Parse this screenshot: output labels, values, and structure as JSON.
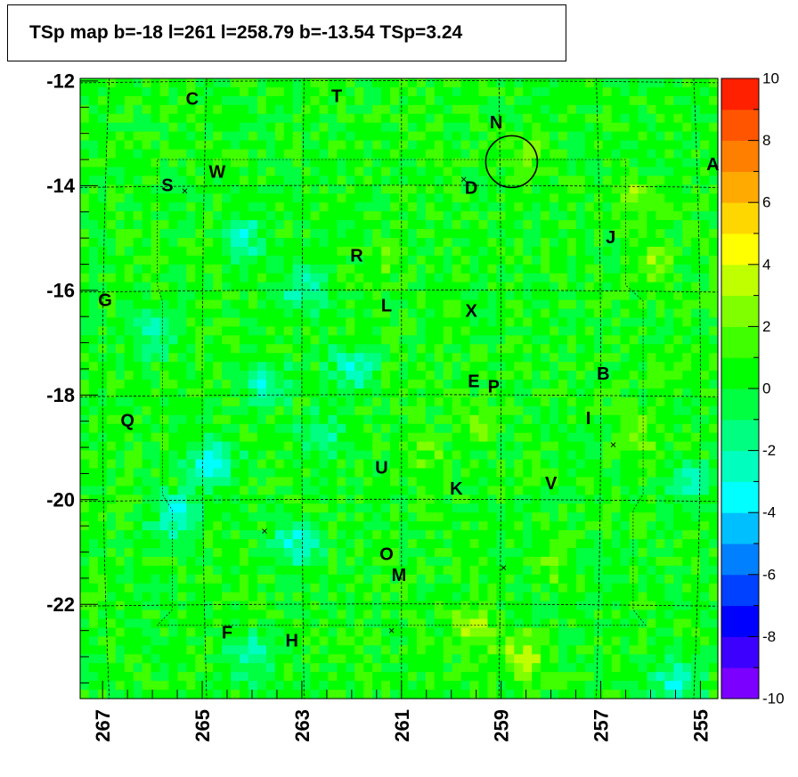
{
  "title": "TSp map b=-18 l=261 l=258.79 b=-13.54 TSp=3.24",
  "colors": {
    "background_value": "#00f040",
    "frame": "#000000",
    "grid": "#000000"
  },
  "chart_data": {
    "type": "heatmap",
    "title": "TSp map b=-18 l=261 l=258.79 b=-13.54 TSp=3.24",
    "xlabel": "",
    "ylabel": "",
    "x_reversed": true,
    "xlim": [
      267.45,
      254.65
    ],
    "ylim": [
      -23.8,
      -11.95
    ],
    "x_ticks": [
      267,
      265,
      263,
      261,
      259,
      257,
      255
    ],
    "x_tick_labels": [
      "267",
      "265",
      "263",
      "261",
      "259",
      "257",
      "255"
    ],
    "y_ticks": [
      -12,
      -14,
      -16,
      -18,
      -20,
      -22
    ],
    "y_tick_labels": [
      "-12",
      "-14",
      "-16",
      "-18",
      "-20",
      "-22"
    ],
    "colorbar": {
      "min": -10,
      "max": 10,
      "ticks": [
        10,
        8,
        6,
        4,
        2,
        0,
        -2,
        -4,
        -6,
        -8,
        -10
      ],
      "tick_labels": [
        "10",
        "8",
        "6",
        "4",
        "2",
        "0",
        "-2",
        "-4",
        "-6",
        "-8",
        "-10"
      ],
      "colors": [
        "#7b00ff",
        "#3c00ff",
        "#0000ff",
        "#0040ff",
        "#0080ff",
        "#00bfff",
        "#00ffff",
        "#00ffbf",
        "#00ff80",
        "#00ff40",
        "#00ff00",
        "#40ff00",
        "#80ff00",
        "#bfff00",
        "#ffff00",
        "#ffd700",
        "#ffaa00",
        "#ff8000",
        "#ff5500",
        "#ff2000"
      ]
    },
    "map_value_range": [
      -4,
      3.24
    ],
    "marker_circle": {
      "l": 258.79,
      "b": -13.54,
      "label": "N"
    },
    "source_labels": [
      {
        "label": "C",
        "l": 265.2,
        "b": -12.35
      },
      {
        "label": "T",
        "l": 262.3,
        "b": -12.3
      },
      {
        "label": "N",
        "l": 259.1,
        "b": -12.8
      },
      {
        "label": "W",
        "l": 264.7,
        "b": -13.75
      },
      {
        "label": "S",
        "l": 265.7,
        "b": -14.0
      },
      {
        "label": "D",
        "l": 259.6,
        "b": -14.05
      },
      {
        "label": "A",
        "l": 254.75,
        "b": -13.6
      },
      {
        "label": "J",
        "l": 256.8,
        "b": -15.0
      },
      {
        "label": "R",
        "l": 261.9,
        "b": -15.35
      },
      {
        "label": "G",
        "l": 266.95,
        "b": -16.2
      },
      {
        "label": "L",
        "l": 261.3,
        "b": -16.3
      },
      {
        "label": "X",
        "l": 259.6,
        "b": -16.4
      },
      {
        "label": "E",
        "l": 259.55,
        "b": -17.75
      },
      {
        "label": "P",
        "l": 259.15,
        "b": -17.85
      },
      {
        "label": "B",
        "l": 256.95,
        "b": -17.6
      },
      {
        "label": "I",
        "l": 257.25,
        "b": -18.45
      },
      {
        "label": "Q",
        "l": 266.5,
        "b": -18.5
      },
      {
        "label": "U",
        "l": 261.4,
        "b": -19.4
      },
      {
        "label": "K",
        "l": 259.9,
        "b": -19.8
      },
      {
        "label": "V",
        "l": 258.0,
        "b": -19.7
      },
      {
        "label": "O",
        "l": 261.3,
        "b": -21.05
      },
      {
        "label": "M",
        "l": 261.05,
        "b": -21.45
      },
      {
        "label": "F",
        "l": 264.5,
        "b": -22.55
      },
      {
        "label": "H",
        "l": 263.2,
        "b": -22.7
      }
    ],
    "cross_markers": [
      {
        "l": 259.75,
        "b": -13.88
      },
      {
        "l": 265.35,
        "b": -14.1
      },
      {
        "l": 256.75,
        "b": -18.95
      },
      {
        "l": 263.75,
        "b": -20.6
      },
      {
        "l": 258.95,
        "b": -21.3
      },
      {
        "l": 261.2,
        "b": -22.5
      }
    ],
    "hot_spots": [
      {
        "l": 256.3,
        "b": -14.2,
        "value": 2.2
      },
      {
        "l": 256.0,
        "b": -15.5,
        "value": 2.0
      },
      {
        "l": 256.2,
        "b": -18.9,
        "value": 2.0
      },
      {
        "l": 259.5,
        "b": -18.6,
        "value": 1.8
      },
      {
        "l": 259.6,
        "b": -22.4,
        "value": 2.6
      },
      {
        "l": 258.6,
        "b": -23.05,
        "value": 3.2
      },
      {
        "l": 261.3,
        "b": -15.3,
        "value": 1.5
      },
      {
        "l": 258.4,
        "b": -13.4,
        "value": 1.6
      },
      {
        "l": 258.0,
        "b": -21.2,
        "value": 1.5
      },
      {
        "l": 260.5,
        "b": -19.1,
        "value": 1.6
      }
    ],
    "cold_spots": [
      {
        "l": 264.8,
        "b": -19.3,
        "value": -3.4
      },
      {
        "l": 265.5,
        "b": -20.3,
        "value": -3.0
      },
      {
        "l": 263.1,
        "b": -20.8,
        "value": -2.8
      },
      {
        "l": 262.0,
        "b": -17.5,
        "value": -2.6
      },
      {
        "l": 263.8,
        "b": -17.8,
        "value": -2.4
      },
      {
        "l": 263.0,
        "b": -16.0,
        "value": -2.4
      },
      {
        "l": 264.0,
        "b": -23.0,
        "value": -2.4
      },
      {
        "l": 255.5,
        "b": -23.5,
        "value": -2.8
      },
      {
        "l": 264.2,
        "b": -15.0,
        "value": -2.2
      },
      {
        "l": 255.2,
        "b": -19.7,
        "value": -2.2
      },
      {
        "l": 266.0,
        "b": -16.8,
        "value": -2.0
      },
      {
        "l": 262.6,
        "b": -18.8,
        "value": -2.0
      }
    ]
  }
}
